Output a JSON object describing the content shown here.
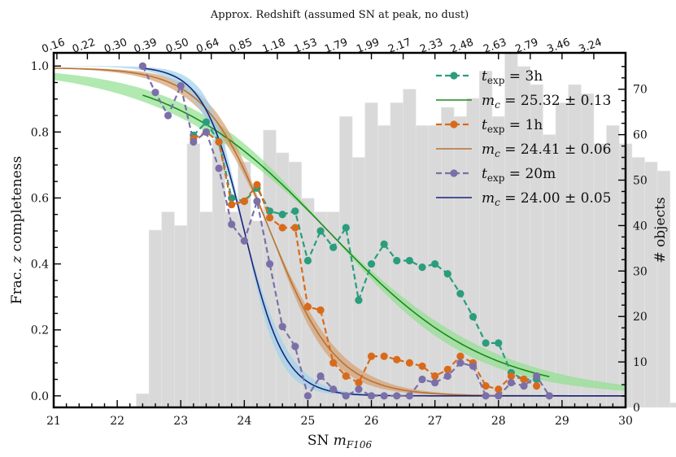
{
  "chart_data": {
    "type": "line",
    "xlabel": "SN m_F106",
    "ylabel": "Frac. z completeness",
    "y2label": "# objects",
    "top_axis_title": "Approx. Redshift (assumed SN at peak, no dust)",
    "xlim": [
      21,
      30
    ],
    "ylim": [
      -0.035,
      1.04
    ],
    "y2lim": [
      0,
      78
    ],
    "x_ticks": [
      "21",
      "22",
      "23",
      "24",
      "25",
      "26",
      "27",
      "28",
      "29",
      "30"
    ],
    "y_ticks": [
      "0.0",
      "0.2",
      "0.4",
      "0.6",
      "0.8",
      "1.0"
    ],
    "y2_ticks": [
      "0",
      "10",
      "20",
      "30",
      "40",
      "50",
      "60",
      "70"
    ],
    "top_ticks": [
      {
        "label": "0.16",
        "x": 21.05
      },
      {
        "label": "0.22",
        "x": 21.53
      },
      {
        "label": "0.30",
        "x": 22.03
      },
      {
        "label": "0.39",
        "x": 22.5
      },
      {
        "label": "0.50",
        "x": 23.0
      },
      {
        "label": "0.64",
        "x": 23.48
      },
      {
        "label": "0.85",
        "x": 24.0
      },
      {
        "label": "1.18",
        "x": 24.52
      },
      {
        "label": "1.53",
        "x": 25.02
      },
      {
        "label": "1.79",
        "x": 25.5
      },
      {
        "label": "1.99",
        "x": 26.0
      },
      {
        "label": "2.17",
        "x": 26.5
      },
      {
        "label": "2.33",
        "x": 27.0
      },
      {
        "label": "2.48",
        "x": 27.48
      },
      {
        "label": "2.63",
        "x": 28.0
      },
      {
        "label": "2.79",
        "x": 28.5
      },
      {
        "label": "3.46",
        "x": 29.0
      },
      {
        "label": "3.24",
        "x": 29.5
      }
    ],
    "histogram": {
      "bin_width": 0.2,
      "edges_start": 22.3,
      "counts": [
        3,
        39,
        43,
        40,
        58,
        43,
        59,
        43,
        54,
        41,
        61,
        56,
        54,
        46,
        43,
        43,
        64,
        55,
        67,
        62,
        67,
        70,
        62,
        62,
        66,
        64,
        68,
        74,
        64,
        78,
        75,
        71,
        60,
        67,
        71,
        69,
        58,
        62,
        58,
        55,
        54,
        52,
        1
      ]
    },
    "series": [
      {
        "name": "t_exp = 3h",
        "color": "#2a9d7c",
        "marker": "circle",
        "x": [
          23.2,
          23.4,
          23.6,
          23.8,
          24.0,
          24.2,
          24.4,
          24.6,
          24.8,
          25.0,
          25.2,
          25.4,
          25.6,
          25.8,
          26.0,
          26.2,
          26.4,
          26.6,
          26.8,
          27.0,
          27.2,
          27.4,
          27.6,
          27.8,
          28.0,
          28.2,
          28.4,
          28.6
        ],
        "values": [
          0.79,
          0.83,
          0.77,
          0.6,
          0.59,
          0.63,
          0.56,
          0.55,
          0.56,
          0.41,
          0.5,
          0.45,
          0.51,
          0.29,
          0.4,
          0.46,
          0.41,
          0.41,
          0.39,
          0.4,
          0.37,
          0.31,
          0.24,
          0.16,
          0.16,
          0.07,
          0.05,
          0.05
        ]
      },
      {
        "name": "m_c = 25.32 ± 0.13",
        "color": "#1a8a1a",
        "band": "#90e090",
        "fit": {
          "mc": 25.32,
          "w": 1.25,
          "amp": 1.0,
          "band_dw": 0.13,
          "x_from": 22.4,
          "x_to": 28.8,
          "band_from": 21.0,
          "band_to": 30.0
        }
      },
      {
        "name": "t_exp = 1h",
        "color": "#d96a1a",
        "marker": "circle",
        "x": [
          23.2,
          23.4,
          23.6,
          23.8,
          24.0,
          24.2,
          24.4,
          24.6,
          24.8,
          25.0,
          25.2,
          25.4,
          25.6,
          25.8,
          26.0,
          26.2,
          26.4,
          26.6,
          26.8,
          27.0,
          27.2,
          27.4,
          27.6,
          27.8,
          28.0,
          28.2,
          28.4,
          28.6
        ],
        "values": [
          0.78,
          0.8,
          0.77,
          0.58,
          0.59,
          0.64,
          0.54,
          0.51,
          0.51,
          0.27,
          0.26,
          0.1,
          0.06,
          0.04,
          0.12,
          0.12,
          0.11,
          0.1,
          0.09,
          0.06,
          0.08,
          0.12,
          0.1,
          0.03,
          0.02,
          0.06,
          0.05,
          0.03
        ]
      },
      {
        "name": "m_c = 24.41 ± 0.06",
        "color": "#b87333",
        "band": "#d4a070",
        "fit": {
          "mc": 24.41,
          "w": 0.52,
          "amp": 0.995,
          "band_dw": 0.06,
          "x_from": 21.0,
          "x_to": 30.0,
          "band_from": 21.0,
          "band_to": 30.0
        }
      },
      {
        "name": "t_exp = 20m",
        "color": "#7b6fa8",
        "marker": "circle",
        "x": [
          22.4,
          22.6,
          22.8,
          23.0,
          23.2,
          23.4,
          23.6,
          23.8,
          24.0,
          24.2,
          24.4,
          24.6,
          24.8,
          25.0,
          25.2,
          25.4,
          25.6,
          25.8,
          26.0,
          26.2,
          26.4,
          26.6,
          26.8,
          27.0,
          27.2,
          27.4,
          27.6,
          27.8,
          28.0,
          28.2,
          28.4,
          28.6,
          28.8
        ],
        "values": [
          1.0,
          0.92,
          0.85,
          0.94,
          0.77,
          0.8,
          0.69,
          0.52,
          0.47,
          0.59,
          0.4,
          0.21,
          0.15,
          0.0,
          0.06,
          0.02,
          0.0,
          0.02,
          0.0,
          0.0,
          0.0,
          0.0,
          0.05,
          0.04,
          0.06,
          0.1,
          0.09,
          0.0,
          0.0,
          0.04,
          0.03,
          0.06,
          0.0
        ]
      },
      {
        "name": "m_c = 24.00 ± 0.05",
        "color": "#1a237e",
        "band": "#9dd1ea",
        "fit": {
          "mc": 24.0,
          "w": 0.32,
          "amp": 1.0,
          "band_dw": 0.05,
          "x_from": 22.4,
          "x_to": 30.0,
          "band_from": 21.0,
          "band_to": 30.0
        }
      }
    ],
    "legend_position": "top-right"
  },
  "legend": {
    "items": [
      {
        "prefix": "t",
        "sub": "exp",
        "suffix": " = 3h",
        "kind": "marker",
        "color": "#2a9d7c"
      },
      {
        "prefix": "m",
        "sub": "c",
        "suffix": " = 25.32 ± 0.13",
        "kind": "line",
        "color": "#1a8a1a"
      },
      {
        "prefix": "t",
        "sub": "exp",
        "suffix": " = 1h",
        "kind": "marker",
        "color": "#d96a1a"
      },
      {
        "prefix": "m",
        "sub": "c",
        "suffix": " = 24.41 ± 0.06",
        "kind": "line",
        "color": "#b87333"
      },
      {
        "prefix": "t",
        "sub": "exp",
        "suffix": " = 20m",
        "kind": "marker",
        "color": "#7b6fa8"
      },
      {
        "prefix": "m",
        "sub": "c",
        "suffix": " = 24.00 ± 0.05",
        "kind": "line",
        "color": "#1a237e"
      }
    ]
  }
}
